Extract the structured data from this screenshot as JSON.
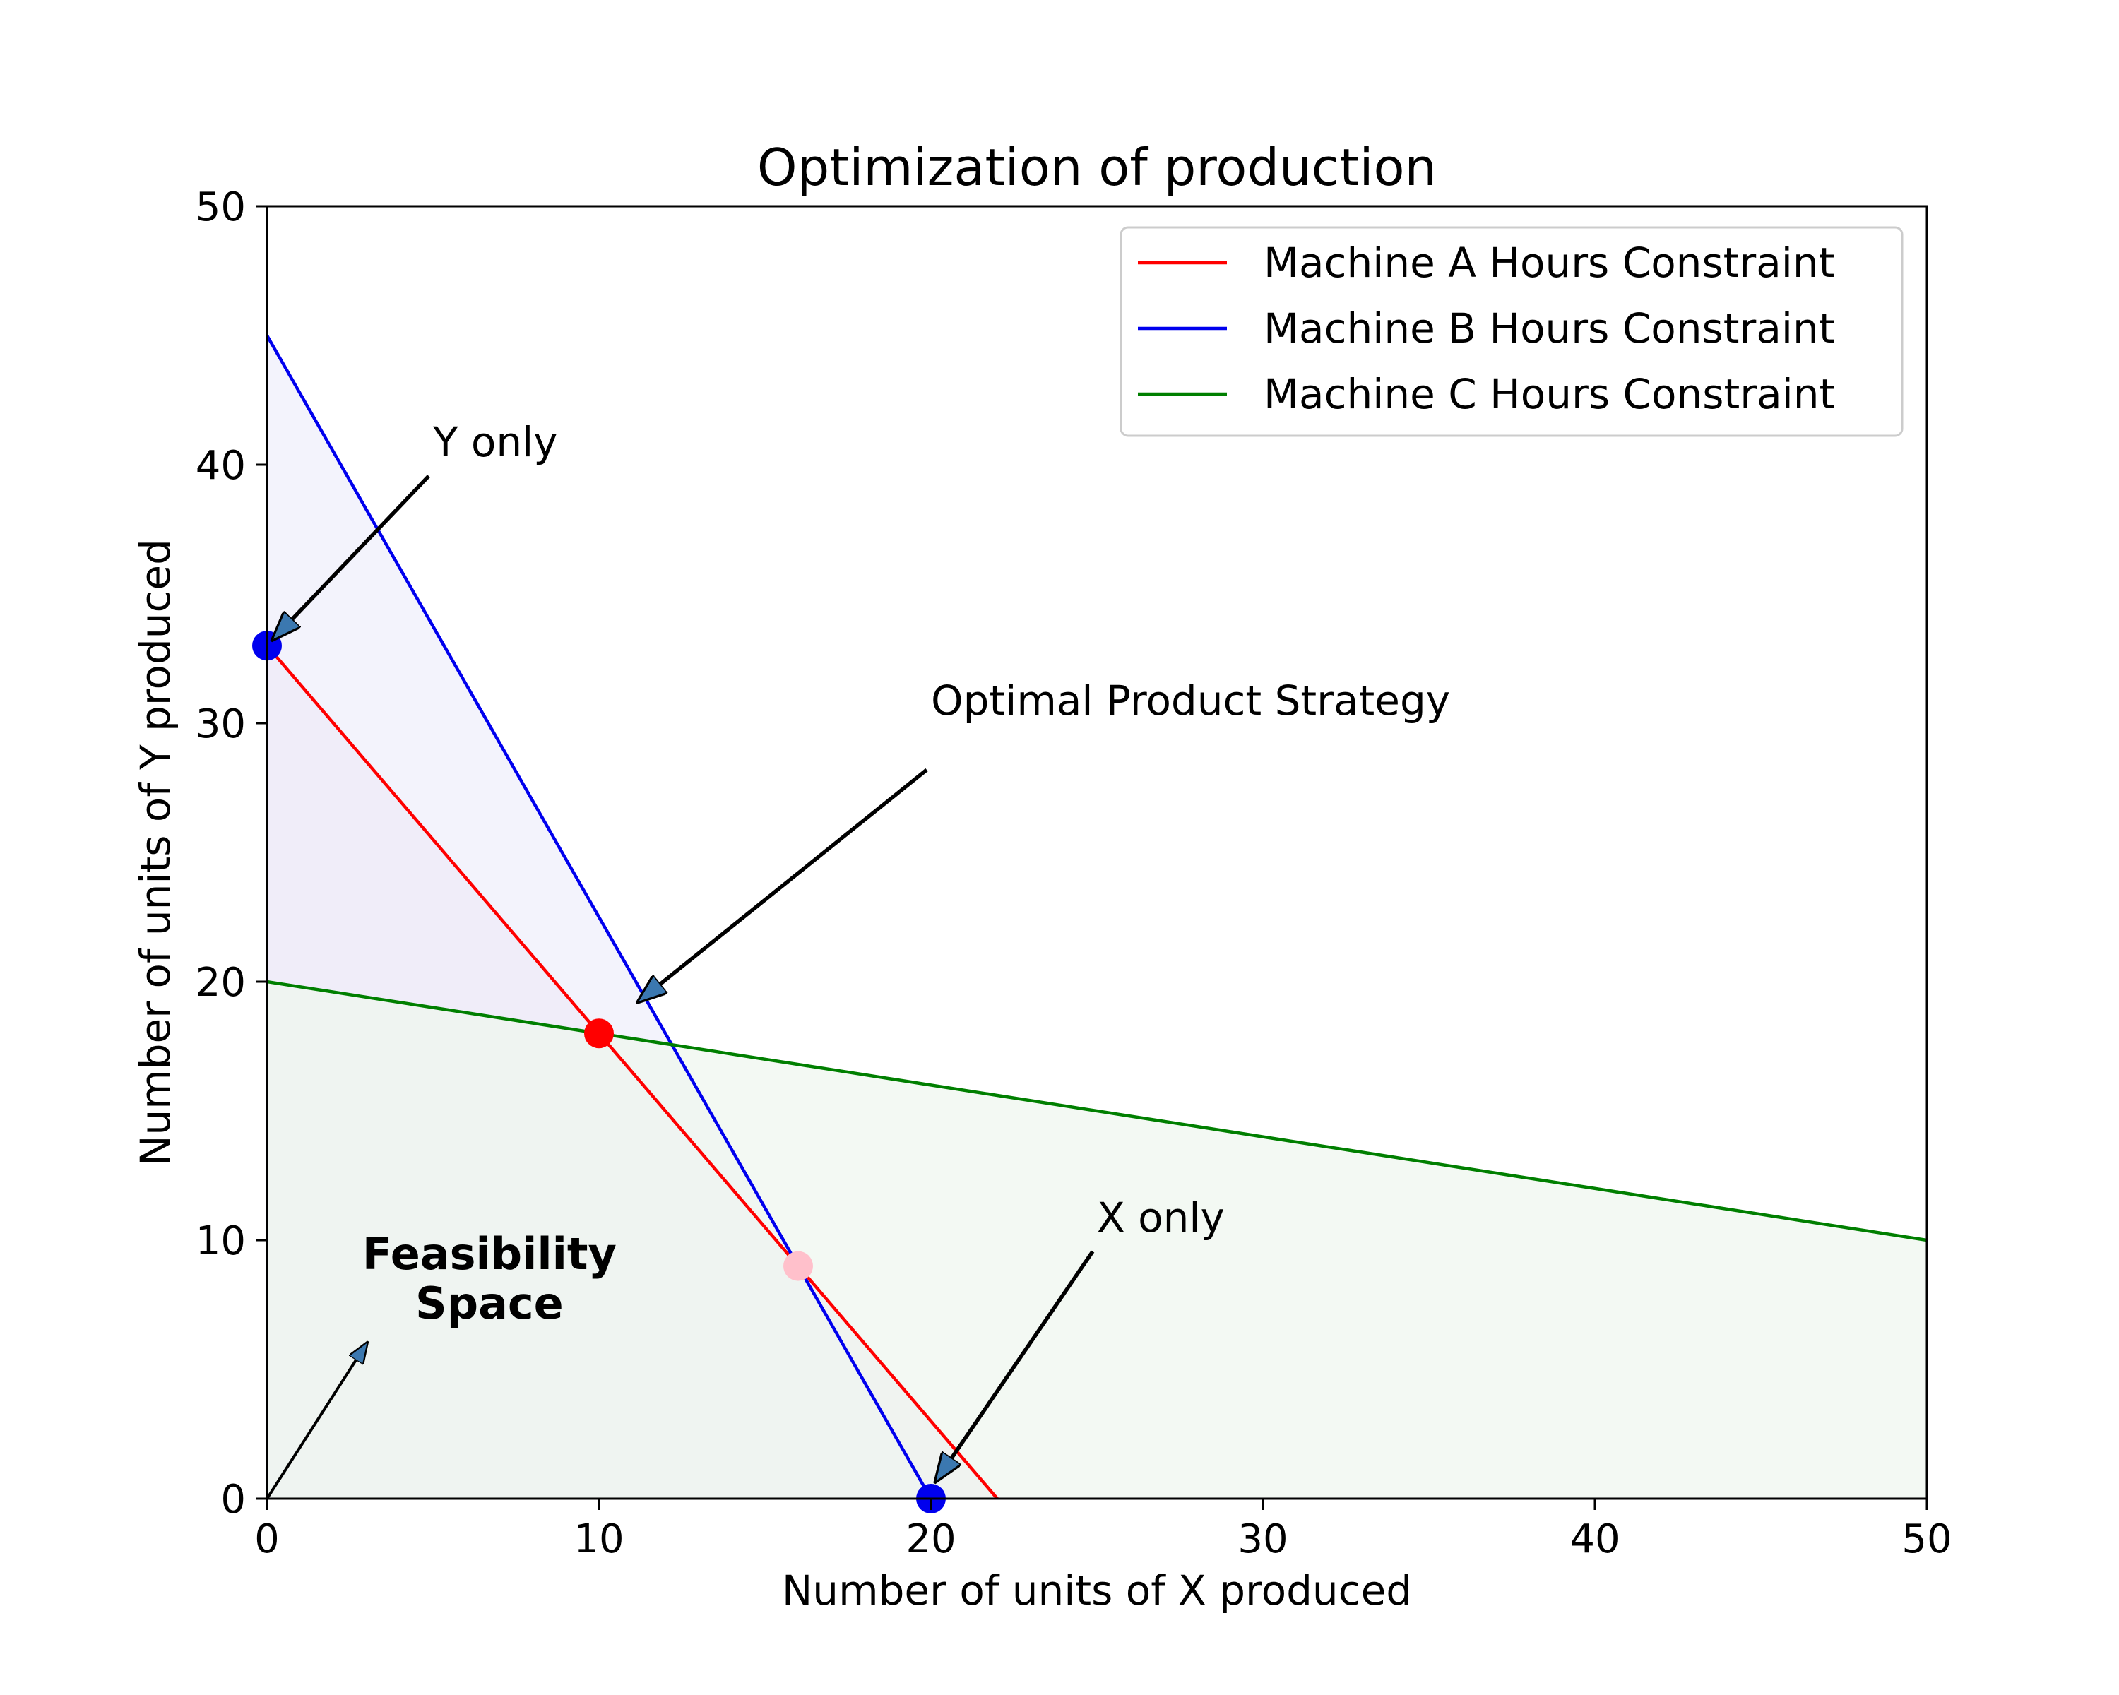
{
  "chart_data": {
    "type": "line",
    "title": "Optimization of production",
    "xlabel": "Number of units of X produced",
    "ylabel": "Number of units of Y produced",
    "xlim": [
      0,
      50
    ],
    "ylim": [
      0,
      50
    ],
    "xticks": [
      0,
      10,
      20,
      30,
      40,
      50
    ],
    "yticks": [
      0,
      10,
      20,
      30,
      40,
      50
    ],
    "grid": false,
    "legend_position": "top-right",
    "series": [
      {
        "name": "Machine A Hours Constraint",
        "color": "#ff0000",
        "fill": "#f2dff0",
        "x": [
          0,
          22
        ],
        "y": [
          33,
          0
        ]
      },
      {
        "name": "Machine B Hours Constraint",
        "color": "#0000ee",
        "fill": "#eeeefb",
        "x": [
          0,
          20
        ],
        "y": [
          45,
          0
        ]
      },
      {
        "name": "Machine C Hours Constraint",
        "color": "#007f00",
        "fill": "#eef6ee",
        "x": [
          0,
          50
        ],
        "y": [
          20,
          10
        ]
      }
    ],
    "points": [
      {
        "x": 0,
        "y": 33,
        "color": "#0000ee"
      },
      {
        "x": 20,
        "y": 0,
        "color": "#0000ee"
      },
      {
        "x": 10,
        "y": 18,
        "color": "#ff0000"
      },
      {
        "x": 16,
        "y": 9,
        "color": "#ffc0cb"
      }
    ],
    "annotations": [
      {
        "text": "Y only",
        "text_x": 5,
        "text_y": 40,
        "arrow_to_x": 0,
        "arrow_to_y": 33
      },
      {
        "text": "Optimal Product Strategy",
        "text_x": 20,
        "text_y": 30,
        "arrow_to_x": 11,
        "arrow_to_y": 19
      },
      {
        "text": "X only",
        "text_x": 25,
        "text_y": 10,
        "arrow_to_x": 20,
        "arrow_to_y": 0.4
      },
      {
        "text": "Feasibility\nSpace",
        "text_x": 6.7,
        "text_y": 8,
        "arrow_from_x": 0,
        "arrow_from_y": 0,
        "arrow_to_x": 3,
        "arrow_to_y": 6
      }
    ]
  }
}
